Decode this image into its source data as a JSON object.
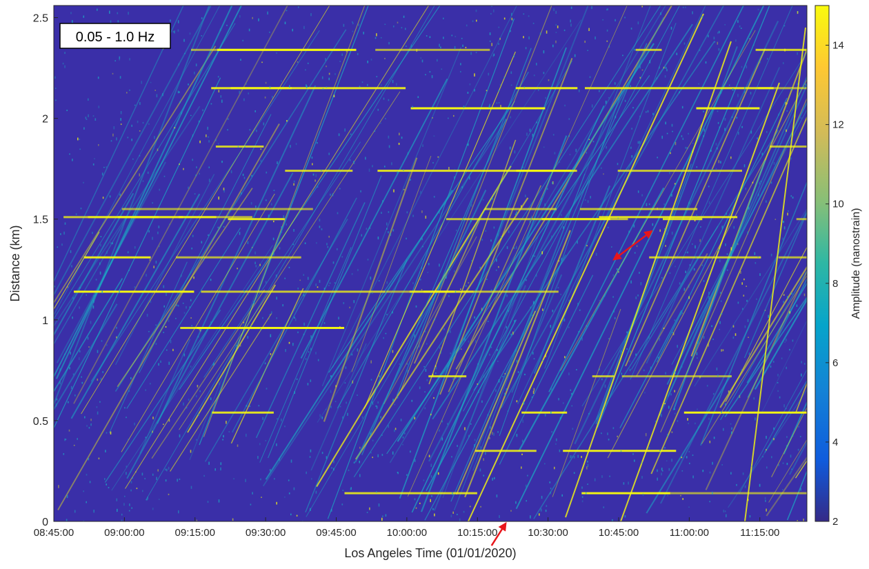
{
  "chart_data": {
    "type": "heatmap",
    "title": "",
    "band_label": "0.05 - 1.0 Hz",
    "xlabel": "Los Angeles Time (01/01/2020)",
    "ylabel": "Distance (km)",
    "x_ticks": [
      "08:45:00",
      "09:00:00",
      "09:15:00",
      "09:30:00",
      "09:45:00",
      "10:00:00",
      "10:15:00",
      "10:30:00",
      "10:45:00",
      "11:00:00",
      "11:15:00"
    ],
    "xlim": [
      "08:45:00",
      "11:25:00"
    ],
    "y_ticks": [
      "0",
      "0.5",
      "1",
      "1.5",
      "2",
      "2.5"
    ],
    "y_tick_values": [
      0,
      0.5,
      1,
      1.5,
      2,
      2.5
    ],
    "ylim": [
      0,
      2.56
    ],
    "colorbar": {
      "label": "Amplitude (nanostrain)",
      "ticks": [
        "2",
        "4",
        "6",
        "8",
        "10",
        "12",
        "14"
      ],
      "tick_values": [
        2,
        4,
        6,
        8,
        10,
        12,
        14
      ],
      "range": [
        2,
        15
      ],
      "colormap": "parula"
    },
    "grid": false,
    "colors": {
      "background": "#3a2fa8",
      "low": "#352a87",
      "mid": "#1ba9c4",
      "high": "#f9fb0e",
      "annotation": "#e8161b"
    },
    "annotations": [
      {
        "type": "double-arrow",
        "from": [
          "10:44:00",
          1.3
        ],
        "to": [
          "10:52:00",
          1.44
        ]
      },
      {
        "type": "arrow",
        "from": [
          "10:18:00",
          -0.12
        ],
        "to": [
          "10:21:00",
          -0.01
        ]
      }
    ]
  }
}
